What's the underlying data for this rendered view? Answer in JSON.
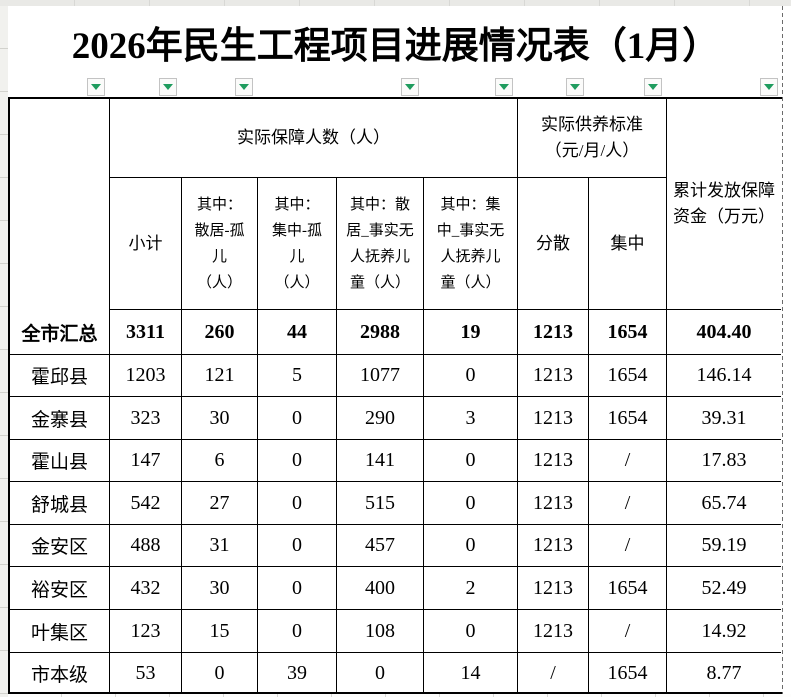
{
  "title": "2026年民生工程项目进展情况表（1月）",
  "table": {
    "group_headers": {
      "people": "实际保障人数（人）",
      "standard": "实际供养标准\n（元/月/人）",
      "funds": "累计发放保障\n资金（万元）"
    },
    "sub_headers": [
      "小计",
      "其中：\n散居-孤\n儿\n（人）",
      "其中：\n集中-孤\n儿\n（人）",
      "其中：散\n居_事实无\n人抚养儿\n童（人）",
      "其中：集\n中_事实无\n人抚养儿\n童（人）",
      "分散",
      "集中"
    ],
    "rows": [
      {
        "region": "全市汇总",
        "bold": true,
        "values": [
          "3311",
          "260",
          "44",
          "2988",
          "19",
          "1213",
          "1654",
          "404.40"
        ]
      },
      {
        "region": "霍邱县",
        "bold": false,
        "values": [
          "1203",
          "121",
          "5",
          "1077",
          "0",
          "1213",
          "1654",
          "146.14"
        ]
      },
      {
        "region": "金寨县",
        "bold": false,
        "values": [
          "323",
          "30",
          "0",
          "290",
          "3",
          "1213",
          "1654",
          "39.31"
        ]
      },
      {
        "region": "霍山县",
        "bold": false,
        "values": [
          "147",
          "6",
          "0",
          "141",
          "0",
          "1213",
          "/",
          "17.83"
        ]
      },
      {
        "region": "舒城县",
        "bold": false,
        "values": [
          "542",
          "27",
          "0",
          "515",
          "0",
          "1213",
          "/",
          "65.74"
        ]
      },
      {
        "region": "金安区",
        "bold": false,
        "values": [
          "488",
          "31",
          "0",
          "457",
          "0",
          "1213",
          "/",
          "59.19"
        ]
      },
      {
        "region": "裕安区",
        "bold": false,
        "values": [
          "432",
          "30",
          "0",
          "400",
          "2",
          "1213",
          "1654",
          "52.49"
        ]
      },
      {
        "region": "叶集区",
        "bold": false,
        "values": [
          "123",
          "15",
          "0",
          "108",
          "0",
          "1213",
          "/",
          "14.92"
        ]
      },
      {
        "region": "市本级",
        "bold": false,
        "values": [
          "53",
          "0",
          "39",
          "0",
          "14",
          "/",
          "1654",
          "8.77"
        ]
      }
    ]
  },
  "filters": {
    "buttons": [
      {
        "column": "region"
      },
      {
        "column": "subtotal"
      },
      {
        "column": "scattered-orphans"
      },
      {
        "column": "scattered-defacto-children"
      },
      {
        "column": "centralized-defacto-children"
      },
      {
        "column": "standard-scattered"
      },
      {
        "column": "standard-centralized"
      },
      {
        "column": "funds"
      }
    ]
  },
  "colors": {
    "filter_green": "#1f9c5e",
    "grid_line": "#000000",
    "page_break_dash": "#6b6b6b",
    "chrome_strip": "#e9e9e6"
  }
}
